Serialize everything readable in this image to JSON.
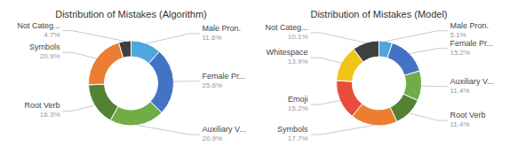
{
  "chart_data": [
    {
      "type": "donut",
      "title": "Distribution of Mistakes (Algorithm)",
      "categories": [
        "Male Pron.",
        "Female Pr...",
        "Auxiliary V...",
        "Root Verb",
        "Symbols",
        "Not Categ..."
      ],
      "values": [
        11.6,
        25.6,
        20.9,
        16.3,
        20.9,
        4.7
      ],
      "value_labels": [
        "11.6%",
        "25.6%",
        "20.9%",
        "16.3%",
        "20.9%",
        "4.7%"
      ],
      "colors": [
        "#4EA6DC",
        "#4472C4",
        "#70AD47",
        "#548235",
        "#ED7D31",
        "#404040"
      ]
    },
    {
      "type": "donut",
      "title": "Distribution of Mistakes (Model)",
      "categories": [
        "Male Pron.",
        "Female Pr...",
        "Auxiliary V...",
        "Root Verb",
        "Symbols",
        "Emoji",
        "Whitespace",
        "Not Categ..."
      ],
      "values": [
        5.1,
        15.2,
        11.4,
        11.4,
        17.7,
        15.2,
        13.9,
        10.1
      ],
      "value_labels": [
        "5.1%",
        "15.2%",
        "11.4%",
        "11.4%",
        "17.7%",
        "15.2%",
        "13.9%",
        "10.1%"
      ],
      "colors": [
        "#4EA6DC",
        "#4472C4",
        "#70AD47",
        "#548235",
        "#ED7D31",
        "#E74C3C",
        "#F0C419",
        "#404040"
      ]
    }
  ]
}
